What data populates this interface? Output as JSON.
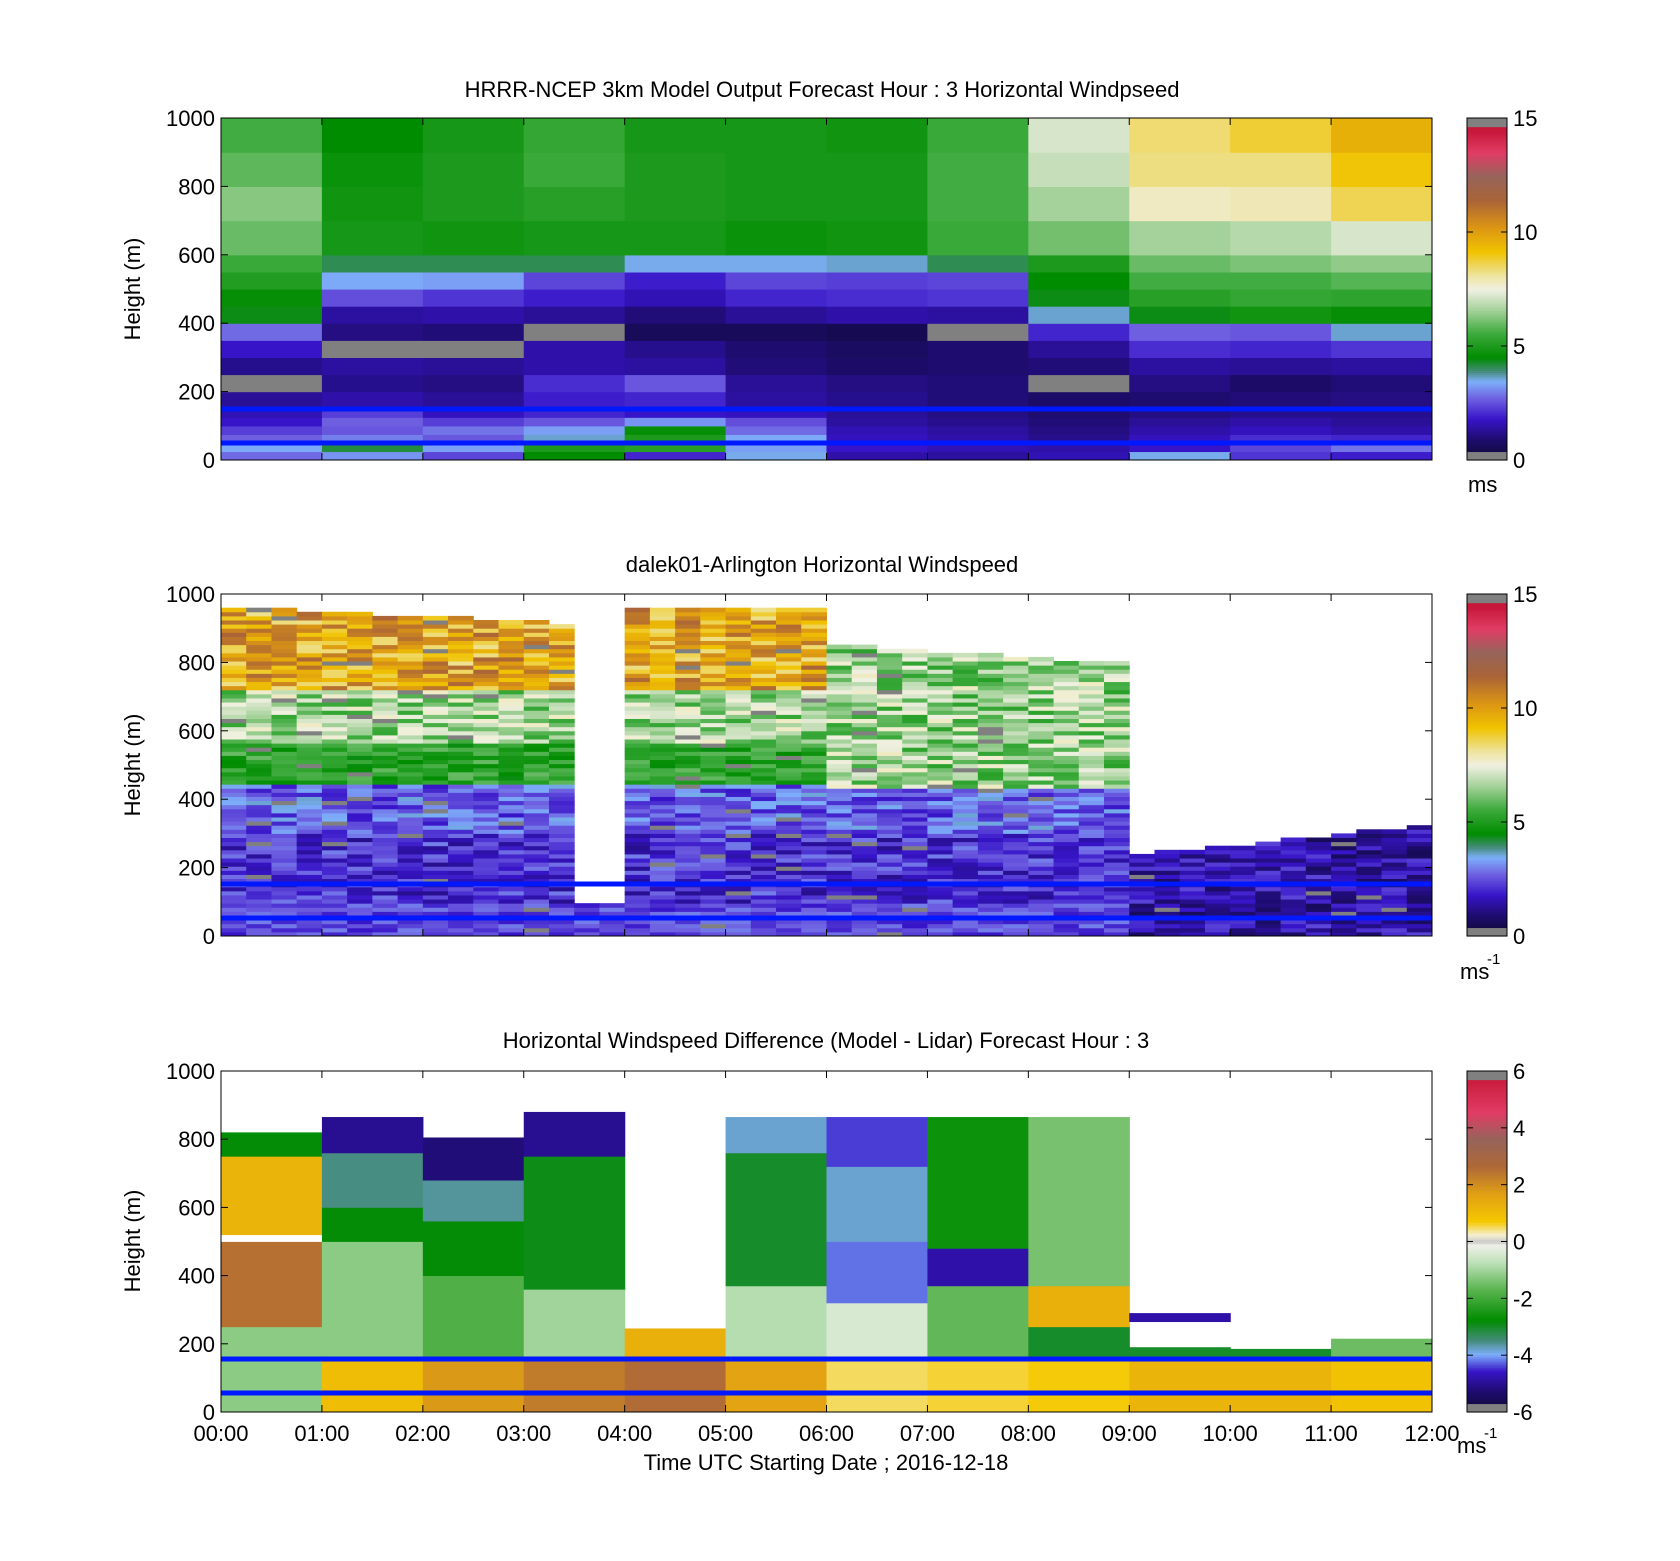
{
  "chart_data": [
    {
      "type": "heatmap",
      "title": "HRRR-NCEP 3km Model Output   Forecast Hour : 3 Horizontal Windpseed",
      "ylabel": "Height (m)",
      "ylim": [
        0,
        1000
      ],
      "yticks": [
        "0",
        "200",
        "400",
        "600",
        "800",
        "1000"
      ],
      "colorbar": {
        "min": 0,
        "max": 15,
        "ticks": [
          "0",
          "5",
          "10",
          "15"
        ],
        "unit": "ms",
        "unit_sup": ""
      },
      "x": [
        "00:00",
        "01:00",
        "02:00",
        "03:00",
        "04:00",
        "05:00",
        "06:00",
        "07:00",
        "08:00",
        "09:00",
        "10:00",
        "11:00"
      ],
      "heights": [
        0,
        25,
        50,
        75,
        100,
        125,
        150,
        200,
        250,
        300,
        350,
        400,
        450,
        500,
        550,
        600,
        700,
        800,
        900,
        1000
      ],
      "values": [
        [
          2.8,
          3.2,
          2.4,
          4.5,
          2.0,
          3.5,
          1.5,
          1.4,
          1.6,
          3.5,
          2.2,
          1.9
        ],
        [
          3.4,
          4.2,
          3.3,
          5.0,
          5.2,
          3.3,
          1.8,
          1.6,
          1.5,
          1.8,
          2.4,
          2.9
        ],
        [
          2.7,
          3.0,
          2.6,
          3.6,
          5.0,
          3.4,
          1.7,
          1.5,
          1.2,
          1.7,
          2.1,
          2.0
        ],
        [
          2.3,
          2.6,
          2.9,
          3.3,
          4.6,
          2.8,
          1.6,
          1.4,
          1.1,
          1.5,
          1.7,
          1.5
        ],
        [
          1.8,
          2.7,
          2.3,
          2.6,
          3.2,
          2.5,
          1.4,
          1.2,
          1.0,
          1.3,
          1.5,
          1.3
        ],
        [
          1.6,
          2.3,
          1.7,
          2.0,
          1.8,
          1.7,
          1.3,
          1.1,
          0.9,
          1.1,
          1.2,
          1.2
        ],
        [
          1.3,
          1.5,
          1.3,
          1.9,
          2.0,
          1.4,
          1.2,
          1.0,
          0.8,
          0.9,
          1.0,
          1.1
        ],
        [
          0.2,
          1.2,
          1.1,
          2.1,
          2.6,
          1.3,
          1.1,
          1.0,
          0.2,
          1.1,
          0.8,
          1.0
        ],
        [
          1.2,
          1.4,
          1.3,
          1.5,
          1.4,
          1.0,
          0.8,
          0.9,
          1.0,
          1.4,
          1.3,
          1.4
        ],
        [
          1.8,
          0.2,
          0.2,
          1.5,
          1.2,
          0.9,
          0.7,
          0.9,
          1.3,
          2.1,
          2.0,
          2.2
        ],
        [
          2.8,
          1.1,
          1.0,
          0.2,
          0.6,
          0.6,
          0.5,
          0.2,
          2.0,
          2.7,
          2.6,
          3.6
        ],
        [
          4.4,
          1.4,
          1.5,
          1.3,
          1.0,
          1.3,
          1.5,
          1.4,
          3.6,
          4.4,
          4.8,
          4.6
        ],
        [
          4.6,
          2.5,
          2.2,
          1.9,
          1.6,
          2.0,
          2.1,
          2.2,
          4.4,
          5.2,
          5.4,
          5.3
        ],
        [
          5.1,
          3.4,
          3.3,
          2.4,
          1.9,
          2.4,
          2.3,
          2.4,
          4.5,
          5.6,
          5.6,
          5.8
        ],
        [
          5.5,
          4.1,
          4.1,
          4.1,
          3.5,
          3.5,
          3.6,
          4.1,
          5.0,
          6.0,
          6.2,
          6.4
        ],
        [
          6.0,
          4.9,
          4.8,
          4.9,
          4.9,
          4.7,
          4.8,
          5.5,
          6.1,
          6.6,
          6.8,
          7.2
        ],
        [
          6.3,
          4.8,
          5.0,
          5.2,
          5.0,
          4.9,
          4.9,
          5.6,
          6.6,
          7.8,
          7.9,
          8.6
        ],
        [
          5.9,
          4.7,
          5.0,
          5.5,
          5.0,
          4.9,
          4.9,
          5.6,
          7.0,
          8.3,
          8.3,
          9.1
        ],
        [
          5.6,
          4.5,
          4.9,
          5.4,
          4.9,
          4.9,
          4.8,
          5.5,
          7.2,
          8.4,
          8.8,
          9.6
        ],
        [
          5.4,
          4.4,
          4.8,
          5.3,
          4.8,
          4.8,
          4.8,
          5.4,
          7.3,
          8.6,
          8.9,
          9.9
        ]
      ]
    },
    {
      "type": "heatmap",
      "title": "dalek01-Arlington  Horizontal Windspeed",
      "ylabel": "Height (m)",
      "ylim": [
        0,
        1000
      ],
      "yticks": [
        "0",
        "200",
        "400",
        "600",
        "800",
        "1000"
      ],
      "colorbar": {
        "min": 0,
        "max": 15,
        "ticks": [
          "0",
          "5",
          "10",
          "15"
        ],
        "unit": "ms",
        "unit_sup": "-1"
      }
    },
    {
      "type": "heatmap",
      "title": "Horizontal Windspeed Difference (Model - Lidar) Forecast Hour : 3",
      "xlabel": "Time UTC  Starting Date ; 2016-12-18",
      "ylabel": "Height (m)",
      "ylim": [
        0,
        1000
      ],
      "yticks": [
        "0",
        "200",
        "400",
        "600",
        "800",
        "1000"
      ],
      "xticks": [
        "00:00",
        "01:00",
        "02:00",
        "03:00",
        "04:00",
        "05:00",
        "06:00",
        "07:00",
        "08:00",
        "09:00",
        "10:00",
        "11:00",
        "12:00"
      ],
      "colorbar": {
        "min": -6,
        "max": 6,
        "ticks": [
          "-6",
          "-4",
          "-2",
          "0",
          "2",
          "4",
          "6"
        ],
        "unit": "ms",
        "unit_sup": "-1"
      },
      "x": [
        "00:00",
        "01:00",
        "02:00",
        "03:00",
        "04:00",
        "05:00",
        "06:00",
        "07:00",
        "08:00",
        "09:00",
        "10:00",
        "11:00"
      ],
      "column_tops": [
        820,
        865,
        805,
        880,
        245,
        865,
        865,
        865,
        865,
        290,
        185,
        215
      ],
      "blocks": [
        [
          [
            0,
            250,
            -1.2
          ],
          [
            250,
            500,
            2.5
          ],
          [
            500,
            520,
            null
          ],
          [
            520,
            750,
            1.2
          ],
          [
            750,
            820,
            -2.8
          ]
        ],
        [
          [
            0,
            160,
            1.0
          ],
          [
            160,
            500,
            -1.2
          ],
          [
            500,
            600,
            -2.8
          ],
          [
            600,
            760,
            -3.5
          ],
          [
            760,
            865,
            -5.0
          ]
        ],
        [
          [
            0,
            160,
            1.8
          ],
          [
            160,
            400,
            -1.8
          ],
          [
            400,
            560,
            -2.8
          ],
          [
            560,
            680,
            -3.6
          ],
          [
            680,
            805,
            -5.2
          ]
        ],
        [
          [
            0,
            160,
            2.3
          ],
          [
            160,
            360,
            -1.0
          ],
          [
            360,
            750,
            -2.9
          ],
          [
            750,
            880,
            -5.0
          ]
        ],
        [
          [
            0,
            160,
            2.6
          ],
          [
            160,
            245,
            1.3
          ]
        ],
        [
          [
            0,
            160,
            1.6
          ],
          [
            160,
            370,
            -0.8
          ],
          [
            370,
            760,
            -3.0
          ],
          [
            760,
            865,
            -3.8
          ]
        ],
        [
          [
            0,
            160,
            0.5
          ],
          [
            160,
            320,
            -0.4
          ],
          [
            320,
            500,
            -4.2
          ],
          [
            500,
            720,
            -3.8
          ],
          [
            720,
            865,
            -4.4
          ]
        ],
        [
          [
            0,
            160,
            0.6
          ],
          [
            160,
            370,
            -1.6
          ],
          [
            370,
            480,
            -4.8
          ],
          [
            480,
            865,
            -2.6
          ]
        ],
        [
          [
            0,
            160,
            0.7
          ],
          [
            160,
            250,
            -3.0
          ],
          [
            250,
            370,
            1.3
          ],
          [
            370,
            865,
            -1.4
          ]
        ],
        [
          [
            0,
            160,
            1.2
          ],
          [
            160,
            190,
            -3.0
          ],
          [
            265,
            290,
            -4.8
          ]
        ],
        [
          [
            0,
            160,
            1.2
          ],
          [
            160,
            185,
            -3.0
          ]
        ],
        [
          [
            0,
            160,
            0.9
          ],
          [
            160,
            215,
            -1.5
          ]
        ]
      ]
    }
  ]
}
